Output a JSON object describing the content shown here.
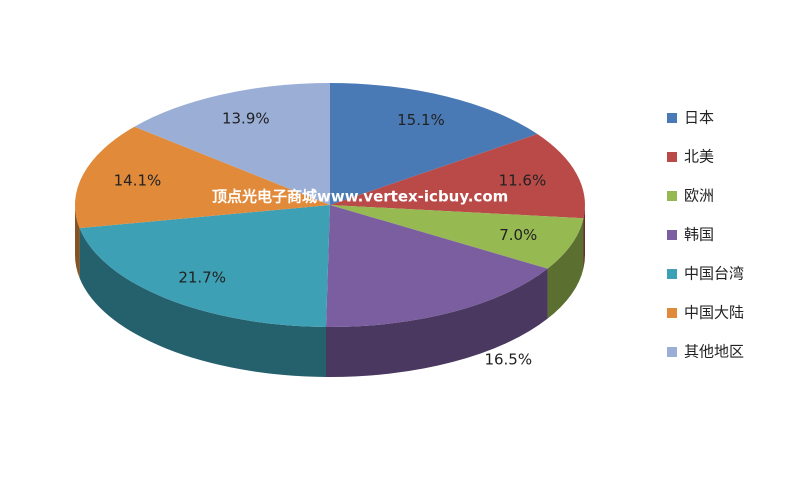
{
  "chart_data": {
    "type": "pie",
    "categories": [
      "日本",
      "北美",
      "欧洲",
      "韩国",
      "中国台湾",
      "中国大陆",
      "其他地区"
    ],
    "values": [
      15.1,
      11.6,
      7.0,
      16.5,
      21.7,
      14.1,
      13.9
    ],
    "value_labels": [
      "15.1%",
      "11.6%",
      "7.0%",
      "16.5%",
      "21.7%",
      "14.1%",
      "13.9%"
    ],
    "colors": [
      "#4a7ab5",
      "#b94a48",
      "#97b952",
      "#7b5ea0",
      "#3ea0b5",
      "#e08a3a",
      "#9aaed6"
    ],
    "watermark": "顶点光电子商城www.vertex-icbuy.com",
    "legend": "right"
  }
}
